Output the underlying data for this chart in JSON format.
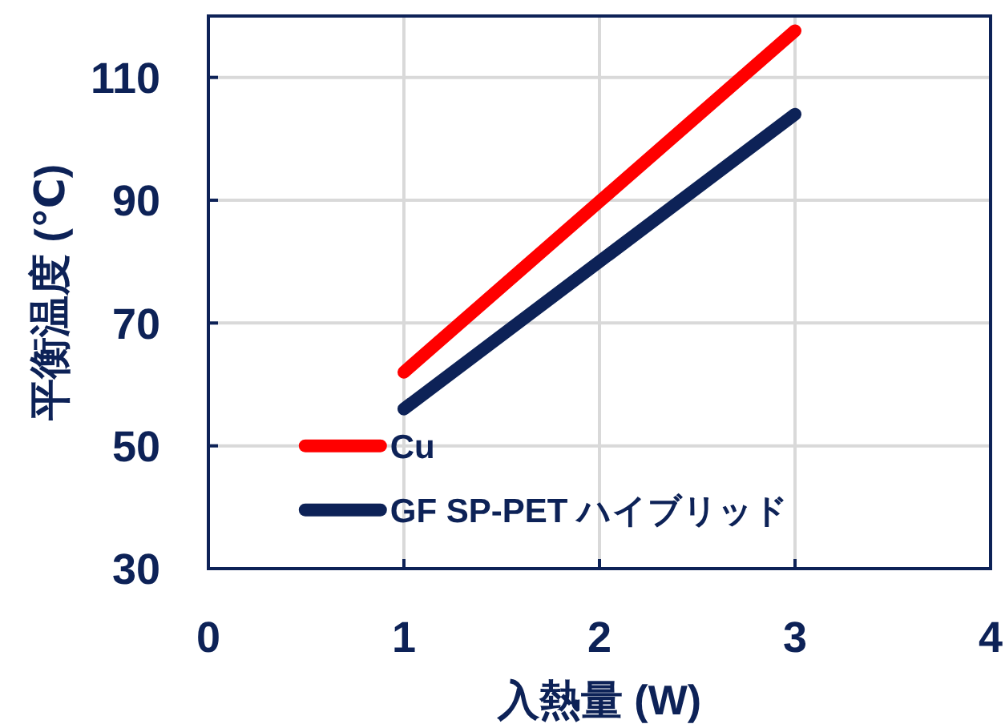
{
  "chart_data": {
    "type": "line",
    "xlabel": "入熱量 (W)",
    "ylabel": "平衡温度 (℃)",
    "x": [
      1,
      3
    ],
    "xlim": [
      0,
      4
    ],
    "xticks": [
      0,
      1,
      2,
      3,
      4
    ],
    "ylim": [
      30,
      120
    ],
    "yticks": [
      30,
      50,
      70,
      90,
      110
    ],
    "grid": true,
    "legend": "bottom left",
    "marker": "none",
    "line_style": "solid",
    "series": [
      {
        "name": "Cu",
        "color": "#ff0000",
        "values": [
          62,
          117.6
        ]
      },
      {
        "name": "GF SP-PET ハイブリッド",
        "color": "#0d2257",
        "values": [
          56,
          104
        ]
      }
    ]
  }
}
